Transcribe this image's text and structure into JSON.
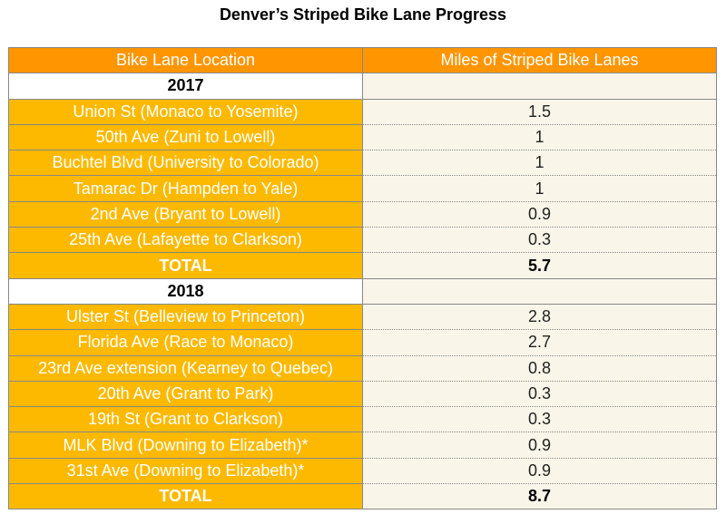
{
  "title": "Denver’s Striped Bike Lane Progress",
  "headers": [
    "Bike Lane Location",
    "Miles of Striped Bike Lanes"
  ],
  "groups": [
    {
      "year": "2017",
      "rows": [
        [
          "Union St (Monaco to Yosemite)",
          "1.5"
        ],
        [
          "50th Ave (Zuni to Lowell)",
          "1"
        ],
        [
          "Buchtel Blvd (University to Colorado)",
          "1"
        ],
        [
          "Tamarac Dr (Hampden to Yale)",
          "1"
        ],
        [
          "2nd Ave (Bryant to Lowell)",
          "0.9"
        ],
        [
          "25th Ave (Lafayette to Clarkson)",
          "0.3"
        ]
      ],
      "total_label": "TOTAL",
      "total": "5.7"
    },
    {
      "year": "2018",
      "rows": [
        [
          "Ulster St (Belleview to Princeton)",
          "2.8"
        ],
        [
          "Florida Ave (Race to Monaco)",
          "2.7"
        ],
        [
          "23rd Ave extension (Kearney to Quebec)",
          "0.8"
        ],
        [
          "20th Ave (Grant to Park)",
          "0.3"
        ],
        [
          "19th St (Grant to Clarkson)",
          "0.3"
        ],
        [
          "MLK Blvd (Downing to Elizabeth)*",
          "0.9"
        ],
        [
          "31st Ave (Downing to Elizabeth)*",
          "0.9"
        ]
      ],
      "total_label": "TOTAL",
      "total": "8.7"
    }
  ],
  "colors": {
    "header": "#FF9500",
    "location_cell": "#FDB900",
    "value_cell": "#F9F6E9"
  }
}
